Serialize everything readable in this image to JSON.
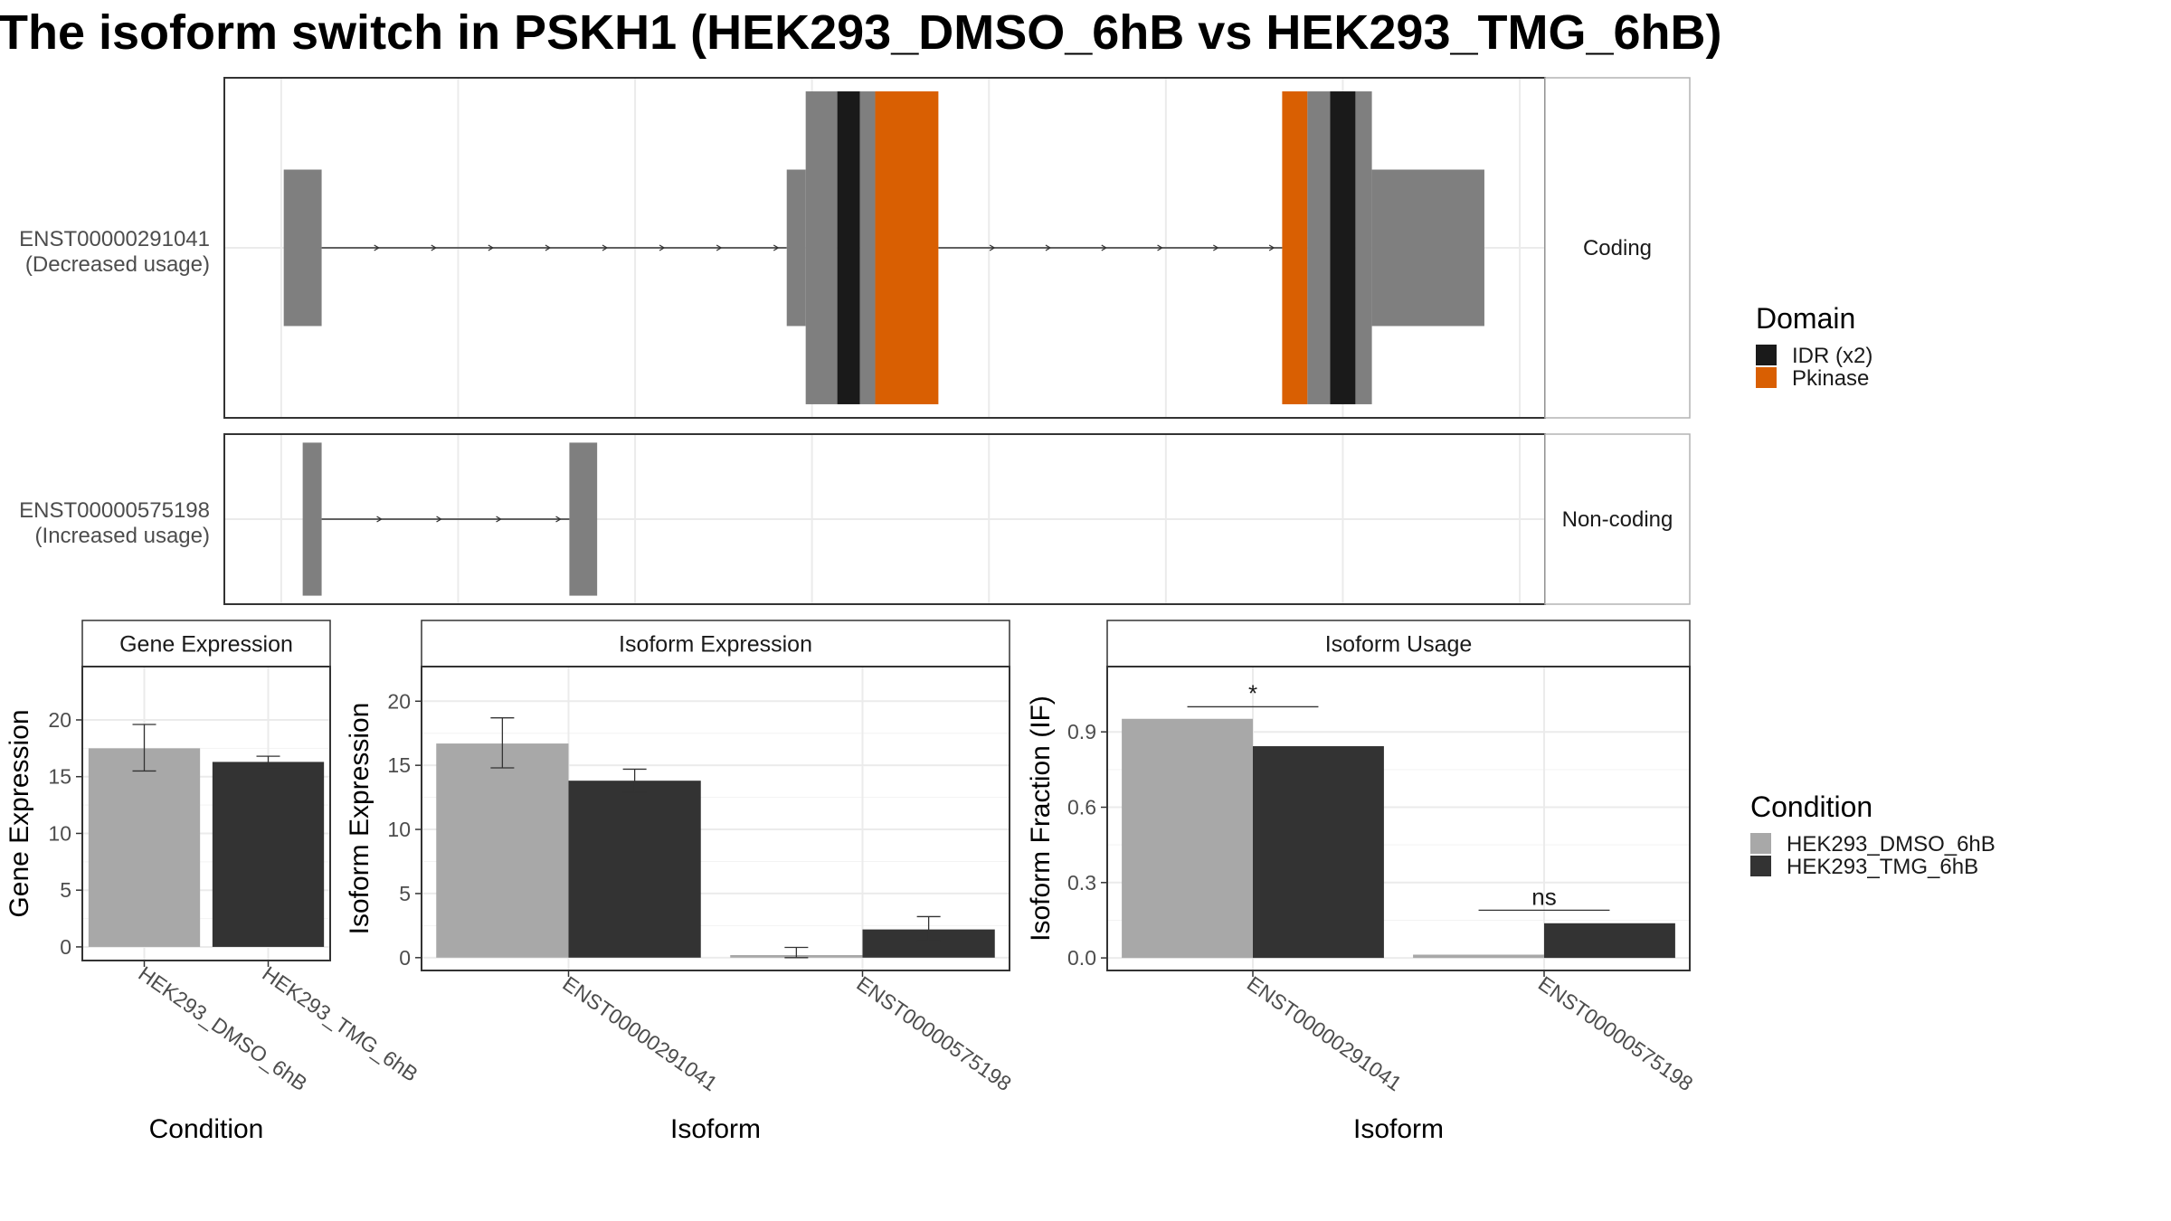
{
  "title": "The isoform switch in PSKH1 (HEK293_DMSO_6hB vs HEK293_TMG_6hB)",
  "colors": {
    "dmso": "#A8A8A8",
    "tmg": "#333333",
    "exon": "#7F7F7F",
    "idr": "#1A1A1A",
    "pkinase": "#D95F02",
    "grid": "#EBEBEB",
    "panel_border": "#333333",
    "strip_border": "#333333"
  },
  "legends": {
    "domain": {
      "title": "Domain",
      "items": [
        {
          "label": "IDR (x2)",
          "color": "#1A1A1A"
        },
        {
          "label": "Pkinase",
          "color": "#D95F02"
        }
      ]
    },
    "condition": {
      "title": "Condition",
      "items": [
        {
          "label": "HEK293_DMSO_6hB",
          "color": "#A8A8A8"
        },
        {
          "label": "HEK293_TMG_6hB",
          "color": "#333333"
        }
      ]
    }
  },
  "chart_data": [
    {
      "type": "gene_structure",
      "tracks": [
        {
          "transcript": "ENST00000291041",
          "annotation": "(Decreased usage)",
          "strip": "Coding",
          "exons": [
            {
              "start": 2,
              "end": 32,
              "kind": "utr"
            },
            {
              "start": 400,
              "end": 415,
              "kind": "utr"
            },
            {
              "start": 415,
              "end": 440,
              "kind": "cds"
            },
            {
              "start": 440,
              "end": 458,
              "kind": "idr"
            },
            {
              "start": 458,
              "end": 470,
              "kind": "cds"
            },
            {
              "start": 470,
              "end": 520,
              "kind": "pkinase"
            },
            {
              "start": 792,
              "end": 812,
              "kind": "pkinase"
            },
            {
              "start": 812,
              "end": 830,
              "kind": "cds"
            },
            {
              "start": 830,
              "end": 850,
              "kind": "idr"
            },
            {
              "start": 850,
              "end": 863,
              "kind": "cds"
            },
            {
              "start": 863,
              "end": 952,
              "kind": "utr"
            }
          ],
          "introns": [
            [
              32,
              400
            ],
            [
              520,
              792
            ]
          ]
        },
        {
          "transcript": "ENST00000575198",
          "annotation": "(Increased usage)",
          "strip": "Non-coding",
          "exons": [
            {
              "start": 17,
              "end": 32,
              "kind": "noncoding"
            },
            {
              "start": 228,
              "end": 250,
              "kind": "noncoding"
            }
          ],
          "introns": [
            [
              32,
              228
            ]
          ]
        }
      ],
      "xlim": [
        -45,
        1000
      ]
    },
    {
      "type": "bar",
      "strip": "Gene Expression",
      "xlabel": "Condition",
      "ylabel": "Gene Expression",
      "categories": [
        "HEK293_DMSO_6hB",
        "HEK293_TMG_6hB"
      ],
      "values": [
        17.5,
        16.3
      ],
      "err_low": [
        15.5,
        15.8
      ],
      "err_high": [
        19.6,
        16.8
      ],
      "ylim": [
        -1.2,
        24.7
      ],
      "yticks": [
        0,
        5,
        10,
        15,
        20
      ]
    },
    {
      "type": "bar",
      "strip": "Isoform Expression",
      "xlabel": "Isoform",
      "ylabel": "Isoform Expression",
      "categories": [
        "ENST00000291041",
        "ENST00000575198"
      ],
      "series": [
        {
          "name": "HEK293_DMSO_6hB",
          "values": [
            16.7,
            0.2
          ],
          "err_low": [
            14.8,
            0.0
          ],
          "err_high": [
            18.7,
            0.8
          ]
        },
        {
          "name": "HEK293_TMG_6hB",
          "values": [
            13.8,
            2.2
          ],
          "err_low": [
            12.9,
            1.3
          ],
          "err_high": [
            14.7,
            3.2
          ]
        }
      ],
      "ylim": [
        -1.0,
        22.7
      ],
      "yticks": [
        0,
        5,
        10,
        15,
        20
      ]
    },
    {
      "type": "bar",
      "strip": "Isoform Usage",
      "xlabel": "Isoform",
      "ylabel": "Isoform Fraction (IF)",
      "categories": [
        "ENST00000291041",
        "ENST00000575198"
      ],
      "series": [
        {
          "name": "HEK293_DMSO_6hB",
          "values": [
            0.952,
            0.013
          ]
        },
        {
          "name": "HEK293_TMG_6hB",
          "values": [
            0.843,
            0.138
          ]
        }
      ],
      "significance": [
        {
          "category": "ENST00000291041",
          "label": "*",
          "y": 1.0
        },
        {
          "category": "ENST00000575198",
          "label": "ns",
          "y": 0.19
        }
      ],
      "ylim": [
        -0.05,
        1.16
      ],
      "yticks": [
        0.0,
        0.3,
        0.6,
        0.9
      ],
      "ytick_labels": [
        "0.0",
        "0.3",
        "0.6",
        "0.9"
      ]
    }
  ]
}
